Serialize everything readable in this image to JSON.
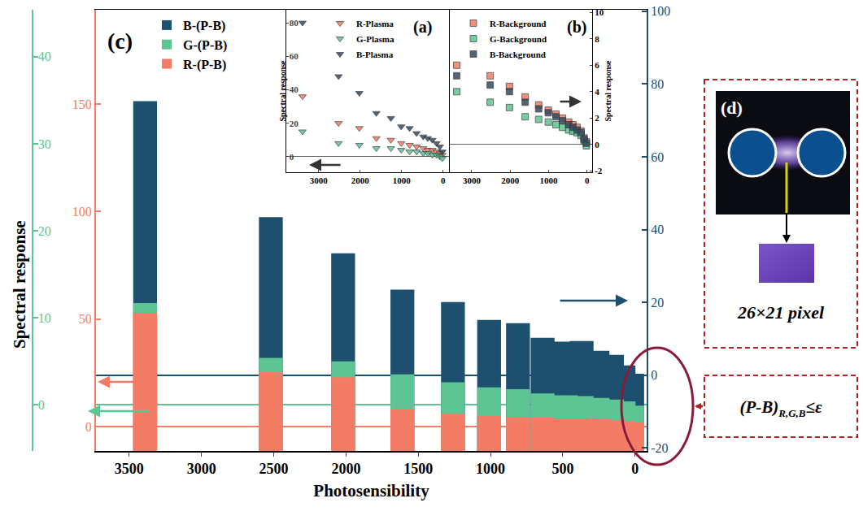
{
  "chart_data": [
    {
      "type": "bar",
      "label": "(c)",
      "x_label": "Photosensibility",
      "y_label": "Spectral response",
      "stacked": false,
      "grid": false,
      "legend": "top-left",
      "x": [
        3390,
        2520,
        2020,
        1610,
        1260,
        1010,
        810,
        640,
        480,
        370,
        260,
        160,
        80,
        20
      ],
      "series": [
        {
          "name": "B-(P-B)",
          "color": "#1d4f6e",
          "axis": "y",
          "values": [
            75.3,
            43.4,
            33.5,
            23.5,
            20.1,
            15.2,
            14.3,
            10.3,
            9.2,
            9.4,
            6.7,
            5.6,
            2.7,
            0.4
          ]
        },
        {
          "name": "G-(P-B)",
          "color": "#5cc593",
          "axis": "y2",
          "values": [
            11.7,
            5.4,
            5.0,
            3.5,
            2.6,
            2.0,
            1.8,
            1.3,
            1.1,
            1.0,
            0.8,
            0.6,
            0.4,
            -0.1
          ]
        },
        {
          "name": "R-(P-B)",
          "color": "#f47c66",
          "axis": "y3",
          "values": [
            52.8,
            25.3,
            23.0,
            8.3,
            6.0,
            4.9,
            4.5,
            4.2,
            3.8,
            3.8,
            3.4,
            3.0,
            2.6,
            1.9
          ]
        }
      ],
      "xlim": [
        3730,
        -80
      ],
      "xticks": [
        3500,
        3000,
        2500,
        2000,
        1500,
        1000,
        500,
        0
      ],
      "ylim": [
        -20.8,
        100.4
      ],
      "yticks": [
        -20,
        0,
        20,
        40,
        60,
        80,
        100
      ],
      "y2lim": [
        -5.3,
        45.4
      ],
      "y2ticks": [
        0,
        10,
        20,
        30,
        40
      ],
      "y3lim": [
        -11.3,
        193.8
      ],
      "y3ticks": [
        0,
        50,
        100,
        150
      ]
    },
    {
      "type": "scatter",
      "label": "(a)",
      "y_label": "Spectral response",
      "grid": false,
      "legend": "top-right",
      "x": [
        3390,
        2520,
        2020,
        1610,
        1260,
        1010,
        810,
        640,
        480,
        370,
        260,
        160,
        80,
        20
      ],
      "series": [
        {
          "name": "R-Plasma",
          "color": "#f47c66",
          "marker": "triangle-down",
          "values": [
            36,
            20,
            17,
            11,
            10,
            8,
            7,
            6,
            5,
            4,
            4,
            3,
            2,
            1
          ]
        },
        {
          "name": "G-Plasma",
          "color": "#5cc593",
          "marker": "triangle-down",
          "values": [
            15,
            8,
            7,
            5,
            5,
            4,
            3,
            3,
            2,
            2,
            1,
            1,
            0,
            -1
          ]
        },
        {
          "name": "B-Plasma",
          "color": "#34495e",
          "marker": "triangle-down",
          "values": [
            80,
            48,
            38,
            26,
            23,
            18,
            17,
            14,
            12,
            11,
            10,
            8,
            6,
            3
          ]
        }
      ],
      "xlim": [
        3780,
        -160
      ],
      "xticks": [
        3000,
        2000,
        1000,
        0
      ],
      "ylim": [
        -9.3,
        87.8
      ],
      "yticks": [
        0,
        20,
        40,
        60,
        80
      ]
    },
    {
      "type": "scatter",
      "label": "(b)",
      "y_label": "Spectral response",
      "grid": false,
      "legend": "top-left",
      "x": [
        3390,
        2520,
        2020,
        1610,
        1260,
        1010,
        810,
        640,
        480,
        370,
        260,
        160,
        80,
        20
      ],
      "series": [
        {
          "name": "R-Background",
          "color": "#f47c66",
          "marker": "square",
          "values": [
            6.0,
            5.2,
            4.4,
            3.6,
            3.0,
            2.6,
            2.3,
            2.0,
            1.7,
            1.5,
            1.3,
            1.0,
            0.5,
            0.2
          ]
        },
        {
          "name": "G-Background",
          "color": "#5cc593",
          "marker": "square",
          "values": [
            4.0,
            3.2,
            2.8,
            2.1,
            1.9,
            1.7,
            1.5,
            1.3,
            1.1,
            1.0,
            0.9,
            0.7,
            0.3,
            -0.1
          ]
        },
        {
          "name": "B-Background",
          "color": "#34495e",
          "marker": "square",
          "values": [
            5.2,
            4.5,
            4.0,
            3.2,
            2.7,
            2.4,
            2.1,
            1.8,
            1.5,
            1.3,
            1.1,
            0.9,
            0.4,
            0.1
          ]
        }
      ],
      "xlim": [
        3570,
        -130
      ],
      "xticks": [
        3000,
        2000,
        1000,
        0
      ],
      "ylim": [
        -2.1,
        10.2
      ],
      "yticks": [
        -2,
        0,
        2,
        4,
        6,
        8,
        10
      ]
    }
  ],
  "panel_d": {
    "label": "(d)",
    "caption": "26×21 pixel"
  },
  "formula": {
    "main": "(P-B)",
    "subscript": "R,G,B",
    "relation": "≤ε"
  }
}
